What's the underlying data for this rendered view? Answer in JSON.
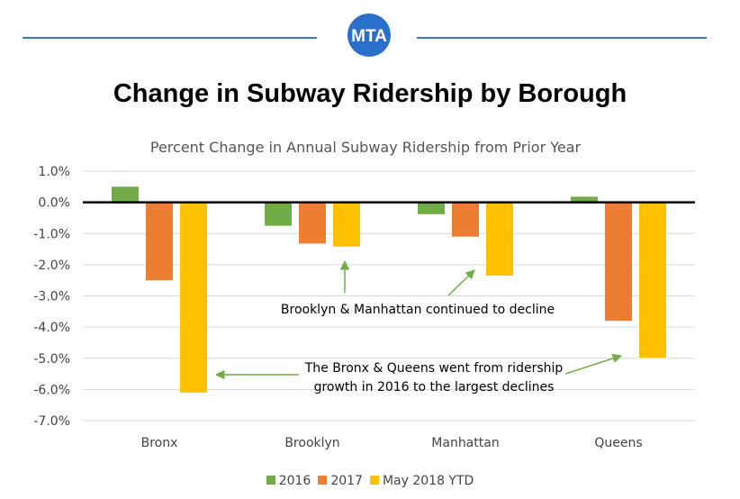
{
  "header": {
    "logo_text": "MTA",
    "title": "Change in Subway Ridership by Borough"
  },
  "chart_data": {
    "type": "bar",
    "title": "Percent Change in Annual Subway Ridership from Prior Year",
    "categories": [
      "Bronx",
      "Brooklyn",
      "Manhattan",
      "Queens"
    ],
    "series": [
      {
        "name": "2016",
        "color": "#70ad47",
        "values": [
          0.5,
          -0.75,
          -0.38,
          0.18
        ]
      },
      {
        "name": "2017",
        "color": "#ed7d31",
        "values": [
          -2.5,
          -1.32,
          -1.1,
          -3.8
        ]
      },
      {
        "name": "May 2018 YTD",
        "color": "#ffc000",
        "values": [
          -6.1,
          -1.42,
          -2.35,
          -4.98
        ]
      }
    ],
    "ylim": [
      -7,
      1
    ],
    "yticks": [
      "1.0%",
      "0.0%",
      "-1.0%",
      "-2.0%",
      "-3.0%",
      "-4.0%",
      "-5.0%",
      "-6.0%",
      "-7.0%"
    ],
    "grid": true,
    "legend_position": "bottom",
    "annotations": [
      {
        "text": "Brooklyn & Manhattan continued to decline"
      },
      {
        "text_line1": "The Bronx & Queens went from ridership",
        "text_line2": "growth in 2016 to the largest declines"
      }
    ],
    "arrow_color": "#70ad47"
  }
}
